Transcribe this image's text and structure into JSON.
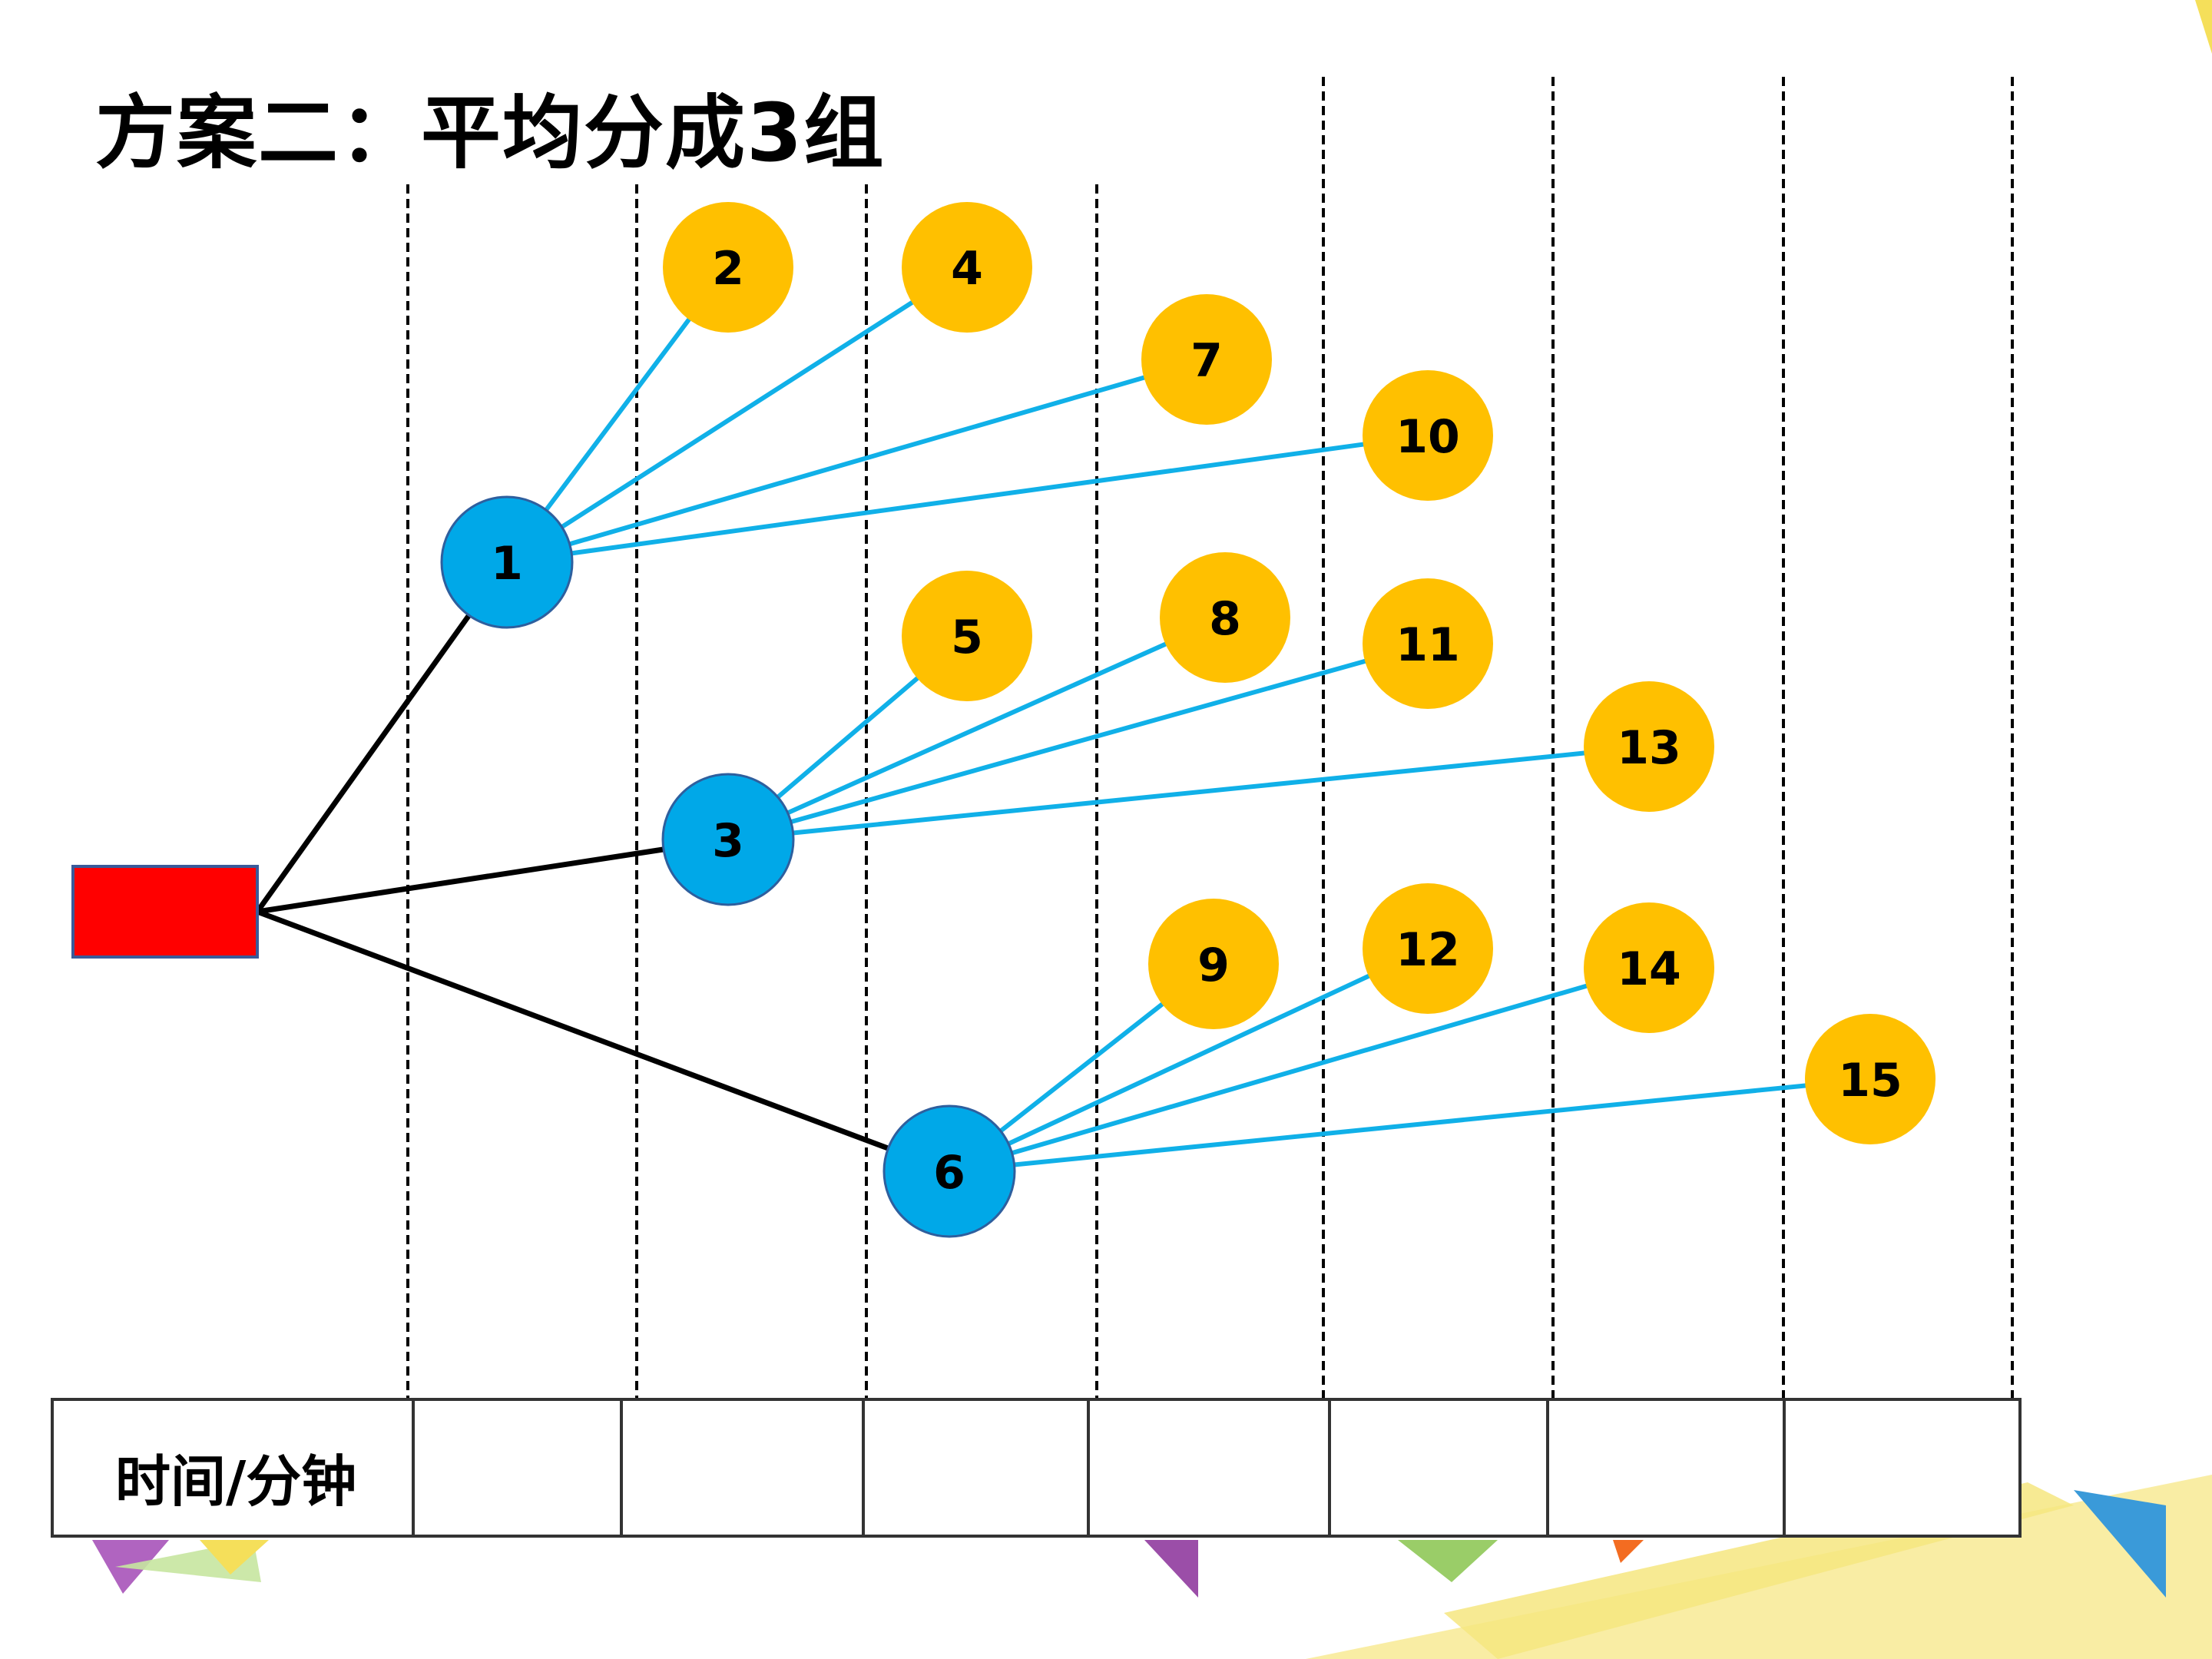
{
  "title": "方案二：平均分成3组",
  "time_row_label": "时间/分钟",
  "colors": {
    "source": "#ff0000",
    "group_node": "#00a8e8",
    "member_node": "#ffc000",
    "trunk_edge": "#000000",
    "branch_edge": "#10b0e8"
  },
  "nodes": [
    {
      "id": "1",
      "kind": "group"
    },
    {
      "id": "3",
      "kind": "group"
    },
    {
      "id": "6",
      "kind": "group"
    },
    {
      "id": "2",
      "kind": "member"
    },
    {
      "id": "4",
      "kind": "member"
    },
    {
      "id": "7",
      "kind": "member"
    },
    {
      "id": "10",
      "kind": "member"
    },
    {
      "id": "5",
      "kind": "member"
    },
    {
      "id": "8",
      "kind": "member"
    },
    {
      "id": "11",
      "kind": "member"
    },
    {
      "id": "13",
      "kind": "member"
    },
    {
      "id": "9",
      "kind": "member"
    },
    {
      "id": "12",
      "kind": "member"
    },
    {
      "id": "14",
      "kind": "member"
    },
    {
      "id": "15",
      "kind": "member"
    }
  ],
  "edges": [
    {
      "from": "source",
      "to": "1",
      "kind": "trunk"
    },
    {
      "from": "source",
      "to": "3",
      "kind": "trunk"
    },
    {
      "from": "source",
      "to": "6",
      "kind": "trunk"
    },
    {
      "from": "1",
      "to": "2",
      "kind": "branch"
    },
    {
      "from": "1",
      "to": "4",
      "kind": "branch"
    },
    {
      "from": "1",
      "to": "7",
      "kind": "branch"
    },
    {
      "from": "1",
      "to": "10",
      "kind": "branch"
    },
    {
      "from": "3",
      "to": "5",
      "kind": "branch"
    },
    {
      "from": "3",
      "to": "8",
      "kind": "branch"
    },
    {
      "from": "3",
      "to": "11",
      "kind": "branch"
    },
    {
      "from": "3",
      "to": "13",
      "kind": "branch"
    },
    {
      "from": "6",
      "to": "9",
      "kind": "branch"
    },
    {
      "from": "6",
      "to": "12",
      "kind": "branch"
    },
    {
      "from": "6",
      "to": "14",
      "kind": "branch"
    },
    {
      "from": "6",
      "to": "15",
      "kind": "branch"
    }
  ]
}
